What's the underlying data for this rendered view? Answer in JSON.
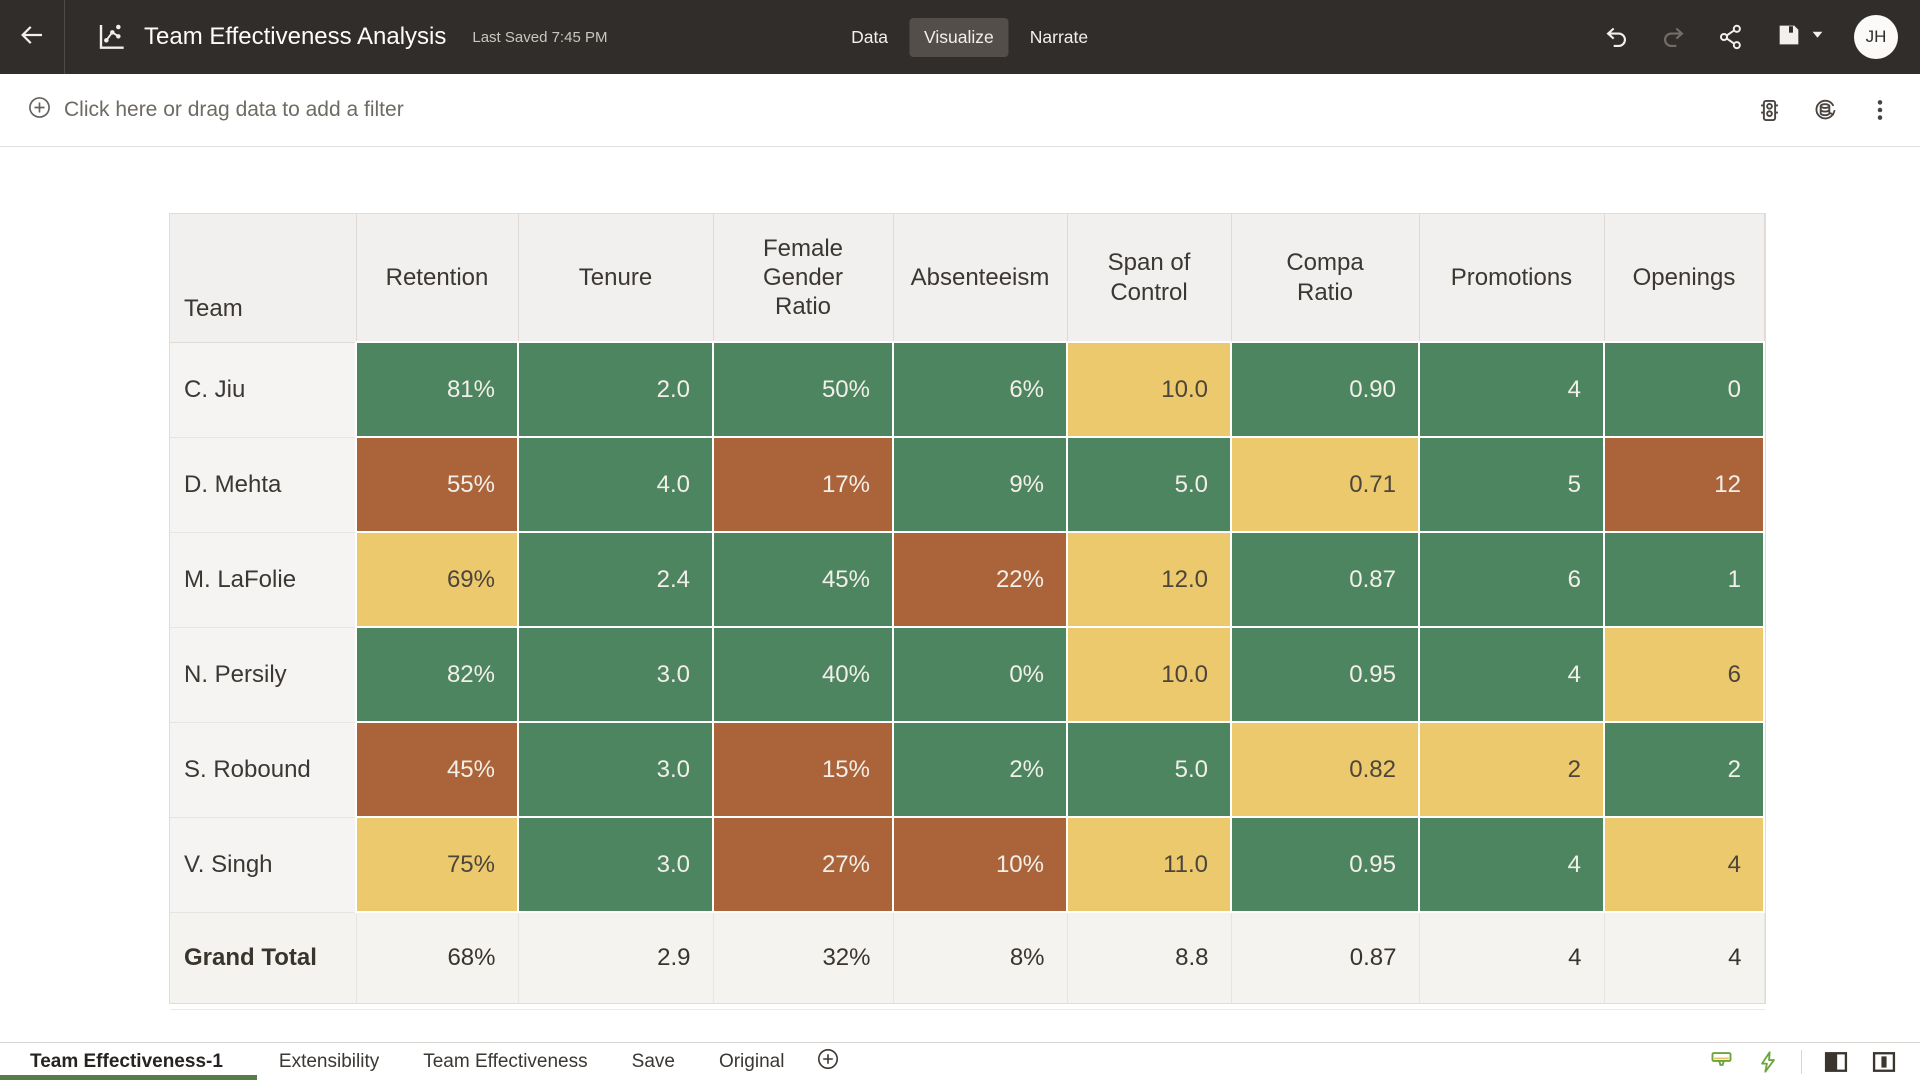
{
  "header": {
    "title": "Team Effectiveness Analysis",
    "last_saved": "Last Saved 7:45 PM",
    "view_tabs": [
      {
        "label": "Data",
        "active": false
      },
      {
        "label": "Visualize",
        "active": true
      },
      {
        "label": "Narrate",
        "active": false
      }
    ],
    "avatar_initials": "JH"
  },
  "filter_bar": {
    "prompt": "Click here or drag data to add a filter"
  },
  "table": {
    "columns": [
      "Team",
      "Retention",
      "Tenure",
      "Female Gender Ratio",
      "Absenteeism",
      "Span of Control",
      "Compa Ratio",
      "Promotions",
      "Openings"
    ],
    "rows": [
      {
        "team": "C. Jiu",
        "cells": [
          {
            "value": "81%",
            "color": "green"
          },
          {
            "value": "2.0",
            "color": "green"
          },
          {
            "value": "50%",
            "color": "green"
          },
          {
            "value": "6%",
            "color": "green"
          },
          {
            "value": "10.0",
            "color": "yellow"
          },
          {
            "value": "0.90",
            "color": "green"
          },
          {
            "value": "4",
            "color": "green"
          },
          {
            "value": "0",
            "color": "green"
          }
        ]
      },
      {
        "team": "D. Mehta",
        "cells": [
          {
            "value": "55%",
            "color": "red"
          },
          {
            "value": "4.0",
            "color": "green"
          },
          {
            "value": "17%",
            "color": "red"
          },
          {
            "value": "9%",
            "color": "green"
          },
          {
            "value": "5.0",
            "color": "green"
          },
          {
            "value": "0.71",
            "color": "yellow"
          },
          {
            "value": "5",
            "color": "green"
          },
          {
            "value": "12",
            "color": "red"
          }
        ]
      },
      {
        "team": "M. LaFolie",
        "cells": [
          {
            "value": "69%",
            "color": "yellow"
          },
          {
            "value": "2.4",
            "color": "green"
          },
          {
            "value": "45%",
            "color": "green"
          },
          {
            "value": "22%",
            "color": "red"
          },
          {
            "value": "12.0",
            "color": "yellow"
          },
          {
            "value": "0.87",
            "color": "green"
          },
          {
            "value": "6",
            "color": "green"
          },
          {
            "value": "1",
            "color": "green"
          }
        ]
      },
      {
        "team": "N. Persily",
        "cells": [
          {
            "value": "82%",
            "color": "green"
          },
          {
            "value": "3.0",
            "color": "green"
          },
          {
            "value": "40%",
            "color": "green"
          },
          {
            "value": "0%",
            "color": "green"
          },
          {
            "value": "10.0",
            "color": "yellow"
          },
          {
            "value": "0.95",
            "color": "green"
          },
          {
            "value": "4",
            "color": "green"
          },
          {
            "value": "6",
            "color": "yellow"
          }
        ]
      },
      {
        "team": "S. Robound",
        "cells": [
          {
            "value": "45%",
            "color": "red"
          },
          {
            "value": "3.0",
            "color": "green"
          },
          {
            "value": "15%",
            "color": "red"
          },
          {
            "value": "2%",
            "color": "green"
          },
          {
            "value": "5.0",
            "color": "green"
          },
          {
            "value": "0.82",
            "color": "yellow"
          },
          {
            "value": "2",
            "color": "yellow"
          },
          {
            "value": "2",
            "color": "green"
          }
        ]
      },
      {
        "team": "V. Singh",
        "cells": [
          {
            "value": "75%",
            "color": "yellow"
          },
          {
            "value": "3.0",
            "color": "green"
          },
          {
            "value": "27%",
            "color": "red"
          },
          {
            "value": "10%",
            "color": "red"
          },
          {
            "value": "11.0",
            "color": "yellow"
          },
          {
            "value": "0.95",
            "color": "green"
          },
          {
            "value": "4",
            "color": "green"
          },
          {
            "value": "4",
            "color": "yellow"
          }
        ]
      }
    ],
    "grand_total": {
      "label": "Grand Total",
      "values": [
        "68%",
        "2.9",
        "32%",
        "8%",
        "8.8",
        "0.87",
        "4",
        "4"
      ]
    }
  },
  "bottom_bar": {
    "sheet_tabs": [
      {
        "label": "Team Effectiveness-1",
        "active": true
      },
      {
        "label": "Extensibility",
        "active": false
      },
      {
        "label": "Team Effectiveness",
        "active": false
      },
      {
        "label": "Save",
        "active": false
      },
      {
        "label": "Original",
        "active": false
      }
    ]
  },
  "colors": {
    "cell_green": "#4d8560",
    "cell_yellow": "#edc96d",
    "cell_red": "#ab6339",
    "topbar_bg": "#312d2a",
    "active_sheet_underline": "#567d47",
    "bottom_icon_green": "#6aa63c"
  },
  "icons": {
    "topbar": [
      "back-arrow",
      "visualization-logo",
      "undo",
      "redo",
      "share",
      "save",
      "caret-down"
    ],
    "filter_bar": [
      "plus-circle",
      "limit-values",
      "refresh-data",
      "kebab-menu"
    ],
    "bottom_bar": [
      "plus-circle",
      "touch-up",
      "lightning",
      "left-panel-toggle",
      "right-panel-toggle"
    ]
  }
}
